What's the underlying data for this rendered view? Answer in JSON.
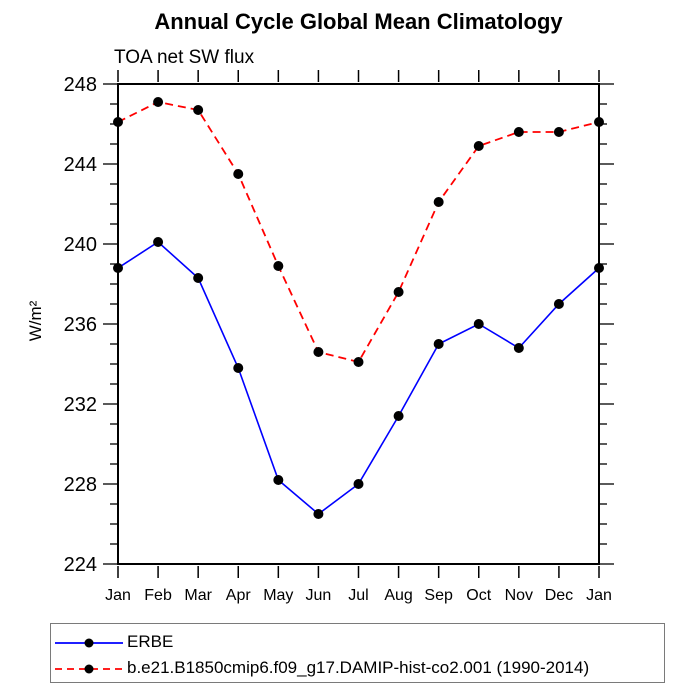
{
  "chart_data": {
    "type": "line",
    "title": "Annual Cycle Global Mean Climatology",
    "subtitle": "TOA net SW flux",
    "ylabel": "W/m²",
    "xlabel": "",
    "categories": [
      "Jan",
      "Feb",
      "Mar",
      "Apr",
      "May",
      "Jun",
      "Jul",
      "Aug",
      "Sep",
      "Oct",
      "Nov",
      "Dec",
      "Jan"
    ],
    "ylim": [
      224,
      248
    ],
    "ytick_major": [
      224,
      228,
      232,
      236,
      240,
      244,
      248
    ],
    "ytick_minor_step": 1,
    "grid": false,
    "legend_position": "bottom",
    "frame_color": "#000000",
    "marker_radius": 5,
    "series": [
      {
        "name": "ERBE",
        "color": "#0000ff",
        "style": "solid",
        "marker": "circle",
        "marker_color": "#000000",
        "values": [
          238.8,
          240.1,
          238.3,
          233.8,
          228.2,
          226.5,
          228.0,
          231.4,
          235.0,
          236.0,
          234.8,
          237.0,
          238.8
        ]
      },
      {
        "name": "b.e21.B1850cmip6.f09_g17.DAMIP-hist-co2.001 (1990-2014)",
        "color": "#ff0000",
        "style": "dashed",
        "marker": "circle",
        "marker_color": "#000000",
        "values": [
          246.1,
          247.1,
          246.7,
          243.5,
          238.9,
          234.6,
          234.1,
          237.6,
          242.1,
          244.9,
          245.6,
          245.6,
          246.1
        ]
      }
    ]
  }
}
